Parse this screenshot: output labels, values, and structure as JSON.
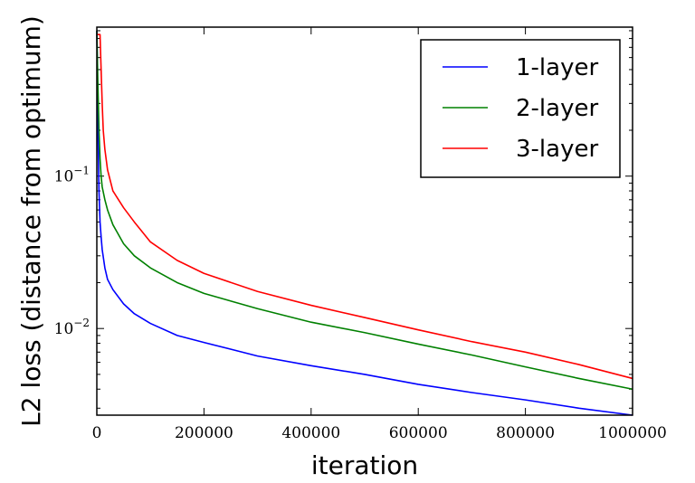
{
  "chart_data": {
    "type": "line",
    "title": "",
    "xlabel": "iteration",
    "ylabel": "L2 loss (distance from optimum)",
    "xlim": [
      0,
      1000000
    ],
    "ylim": [
      0.0027,
      0.95
    ],
    "yscale": "log",
    "grid": false,
    "legend_position": "top-right",
    "x_ticks": [
      {
        "value": 0,
        "label": "0"
      },
      {
        "value": 200000,
        "label": "200000"
      },
      {
        "value": 400000,
        "label": "400000"
      },
      {
        "value": 600000,
        "label": "600000"
      },
      {
        "value": 800000,
        "label": "800000"
      },
      {
        "value": 1000000,
        "label": "1000000"
      }
    ],
    "y_ticks": [
      {
        "value": 0.1,
        "base": "10",
        "exponent": "−1"
      },
      {
        "value": 0.01,
        "base": "10",
        "exponent": "−2"
      }
    ],
    "series": [
      {
        "name": "1-layer",
        "color": "#0000ff",
        "points": [
          [
            0,
            0.9
          ],
          [
            1000,
            0.5
          ],
          [
            2000,
            0.2
          ],
          [
            4000,
            0.08
          ],
          [
            6000,
            0.05
          ],
          [
            8000,
            0.04
          ],
          [
            10000,
            0.033
          ],
          [
            15000,
            0.025
          ],
          [
            20000,
            0.021
          ],
          [
            30000,
            0.018
          ],
          [
            50000,
            0.0145
          ],
          [
            70000,
            0.0125
          ],
          [
            100000,
            0.0108
          ],
          [
            150000,
            0.009
          ],
          [
            200000,
            0.0081
          ],
          [
            300000,
            0.0066
          ],
          [
            400000,
            0.0057
          ],
          [
            500000,
            0.005
          ],
          [
            600000,
            0.0043
          ],
          [
            700000,
            0.0038
          ],
          [
            800000,
            0.0034
          ],
          [
            900000,
            0.003
          ],
          [
            1000000,
            0.0027
          ]
        ]
      },
      {
        "name": "2-layer",
        "color": "#008000",
        "points": [
          [
            0,
            0.9
          ],
          [
            1000,
            0.6
          ],
          [
            2000,
            0.4
          ],
          [
            4000,
            0.2
          ],
          [
            6000,
            0.13
          ],
          [
            8000,
            0.1
          ],
          [
            10000,
            0.085
          ],
          [
            15000,
            0.07
          ],
          [
            20000,
            0.06
          ],
          [
            30000,
            0.048
          ],
          [
            50000,
            0.036
          ],
          [
            70000,
            0.03
          ],
          [
            100000,
            0.025
          ],
          [
            150000,
            0.02
          ],
          [
            200000,
            0.017
          ],
          [
            300000,
            0.0135
          ],
          [
            400000,
            0.011
          ],
          [
            500000,
            0.0094
          ],
          [
            600000,
            0.0079
          ],
          [
            700000,
            0.0067
          ],
          [
            800000,
            0.0056
          ],
          [
            900000,
            0.0047
          ],
          [
            1000000,
            0.004
          ]
        ]
      },
      {
        "name": "3-layer",
        "color": "#ff0000",
        "points": [
          [
            1000,
            0.85
          ],
          [
            5000,
            0.85
          ],
          [
            6000,
            0.85
          ],
          [
            8000,
            0.5
          ],
          [
            10000,
            0.3
          ],
          [
            12000,
            0.2
          ],
          [
            15000,
            0.15
          ],
          [
            20000,
            0.11
          ],
          [
            30000,
            0.08
          ],
          [
            50000,
            0.062
          ],
          [
            70000,
            0.05
          ],
          [
            100000,
            0.037
          ],
          [
            150000,
            0.028
          ],
          [
            200000,
            0.023
          ],
          [
            300000,
            0.0175
          ],
          [
            400000,
            0.0142
          ],
          [
            500000,
            0.0118
          ],
          [
            600000,
            0.0098
          ],
          [
            700000,
            0.0082
          ],
          [
            800000,
            0.007
          ],
          [
            900000,
            0.0058
          ],
          [
            1000000,
            0.0047
          ]
        ]
      }
    ]
  }
}
